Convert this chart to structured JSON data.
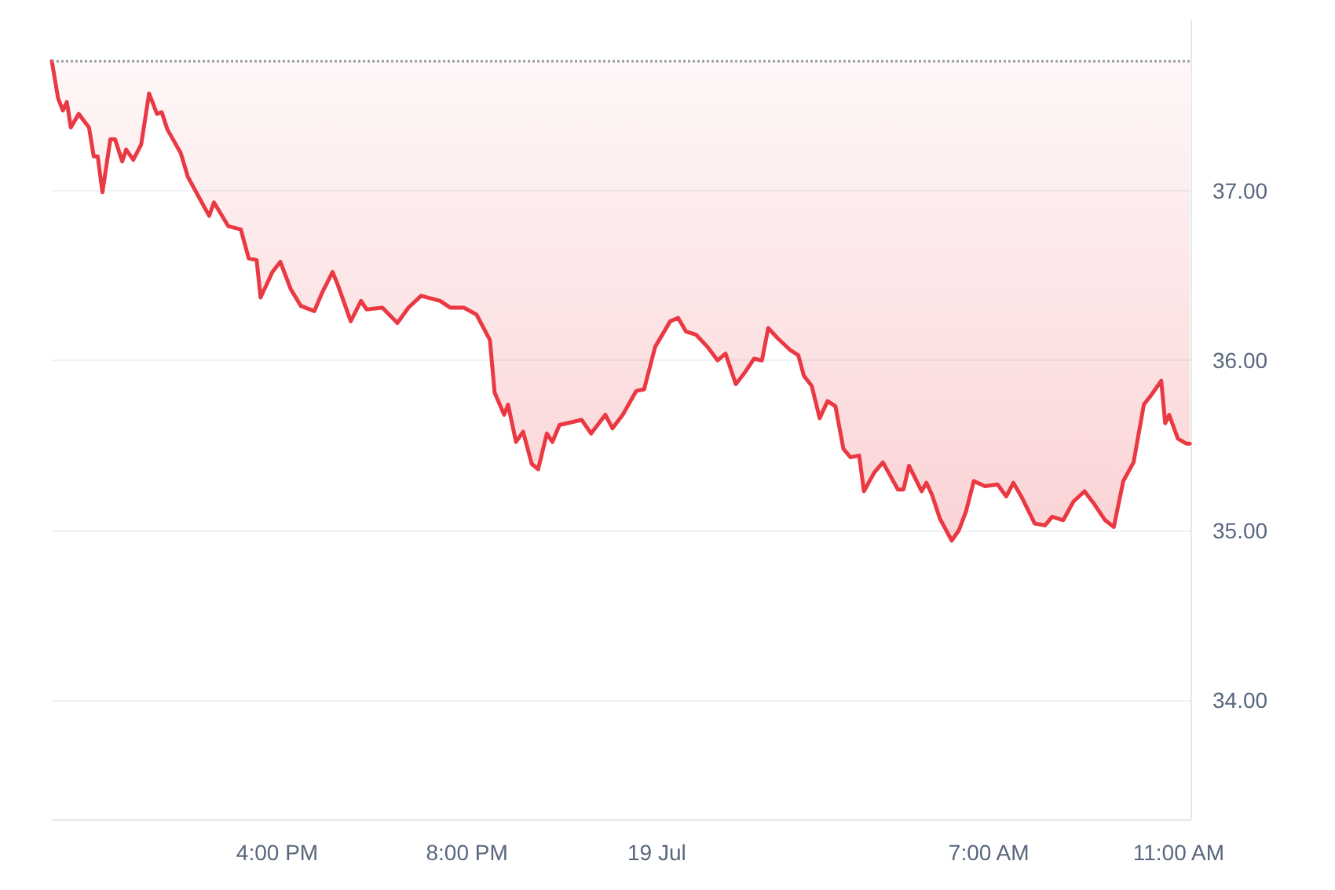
{
  "chart_data": {
    "type": "line",
    "color": "#ea3943",
    "line_style": "solid",
    "marker": "none",
    "grid": "y",
    "xlim": [
      "--07-18T11:15",
      "--07-19T11:15"
    ],
    "xticks": [
      {
        "value": "--07-18T16:00",
        "label": "4:00 PM"
      },
      {
        "value": "--07-18T20:00",
        "label": "8:00 PM"
      },
      {
        "value": "--07-19T00:00",
        "label": "19 Jul"
      },
      {
        "value": "--07-19T07:00",
        "label": "7:00 AM"
      },
      {
        "value": "--07-19T11:00",
        "label": "11:00 AM"
      }
    ],
    "ylim": [
      33.3,
      38.0
    ],
    "yticks": [
      {
        "value": 34,
        "label": "34.00"
      },
      {
        "value": 35,
        "label": "35.00"
      },
      {
        "value": 36,
        "label": "36.00"
      },
      {
        "value": 37,
        "label": "37.00"
      }
    ],
    "ref_lines": [
      {
        "axis": "y",
        "value": 37.76,
        "color": "#999999",
        "line_style": "dotted"
      }
    ],
    "x": [
      "--07-18T11:15",
      "--07-18T11:23",
      "--07-18T11:29",
      "--07-18T11:34",
      "--07-18T11:39",
      "--07-18T11:49",
      "--07-18T12:02",
      "--07-18T12:08",
      "--07-18T12:13",
      "--07-18T12:19",
      "--07-18T12:29",
      "--07-18T12:35",
      "--07-18T12:44",
      "--07-18T12:49",
      "--07-18T12:58",
      "--07-18T13:08",
      "--07-18T13:18",
      "--07-18T13:28",
      "--07-18T13:34",
      "--07-18T13:41",
      "--07-18T13:58",
      "--07-18T14:07",
      "--07-18T14:21",
      "--07-18T14:34",
      "--07-18T14:40",
      "--07-18T14:58",
      "--07-18T15:14",
      "--07-18T15:24",
      "--07-18T15:34",
      "--07-18T15:39",
      "--07-18T15:54",
      "--07-18T16:04",
      "--07-18T16:17",
      "--07-18T16:30",
      "--07-18T16:47",
      "--07-18T16:57",
      "--07-18T17:10",
      "--07-18T17:17",
      "--07-18T17:33",
      "--07-18T17:46",
      "--07-18T17:53",
      "--07-18T18:13",
      "--07-18T18:32",
      "--07-18T18:46",
      "--07-18T19:02",
      "--07-18T19:26",
      "--07-18T19:39",
      "--07-18T19:56",
      "--07-18T20:12",
      "--07-18T20:29",
      "--07-18T20:35",
      "--07-18T20:47",
      "--07-18T20:52",
      "--07-18T21:02",
      "--07-18T21:11",
      "--07-18T21:22",
      "--07-18T21:30",
      "--07-18T21:41",
      "--07-18T21:48",
      "--07-18T21:57",
      "--07-18T22:25",
      "--07-18T22:37",
      "--07-18T22:55",
      "--07-18T23:04",
      "--07-18T23:17",
      "--07-18T23:34",
      "--07-18T23:44",
      "--07-18T23:58",
      "--07-19T00:17",
      "--07-19T00:27",
      "--07-19T00:37",
      "--07-19T00:50",
      "--07-19T01:04",
      "--07-19T01:17",
      "--07-19T01:27",
      "--07-19T01:40",
      "--07-19T01:50",
      "--07-19T02:03",
      "--07-19T02:13",
      "--07-19T02:21",
      "--07-19T02:33",
      "--07-19T02:49",
      "--07-19T02:59",
      "--07-19T03:06",
      "--07-19T03:16",
      "--07-19T03:26",
      "--07-19T03:36",
      "--07-19T03:46",
      "--07-19T03:56",
      "--07-19T04:05",
      "--07-19T04:16",
      "--07-19T04:22",
      "--07-19T04:35",
      "--07-19T04:46",
      "--07-19T05:05",
      "--07-19T05:12",
      "--07-19T05:19",
      "--07-19T05:35",
      "--07-19T05:41",
      "--07-19T05:48",
      "--07-19T05:58",
      "--07-19T06:13",
      "--07-19T06:22",
      "--07-19T06:31",
      "--07-19T06:41",
      "--07-19T06:55",
      "--07-19T07:11",
      "--07-19T07:22",
      "--07-19T07:31",
      "--07-19T07:41",
      "--07-19T07:58",
      "--07-19T08:11",
      "--07-19T08:20",
      "--07-19T08:34",
      "--07-19T08:47",
      "--07-19T09:01",
      "--07-19T09:14",
      "--07-19T09:27",
      "--07-19T09:38",
      "--07-19T09:50",
      "--07-19T10:03",
      "--07-19T10:16",
      "--07-19T10:26",
      "--07-19T10:38",
      "--07-19T10:43",
      "--07-19T10:48",
      "--07-19T10:59",
      "--07-19T11:10",
      "--07-19T11:14"
    ],
    "values": [
      37.76,
      37.54,
      37.47,
      37.52,
      37.37,
      37.45,
      37.37,
      37.2,
      37.2,
      36.99,
      37.3,
      37.3,
      37.17,
      37.24,
      37.18,
      37.27,
      37.57,
      37.45,
      37.46,
      37.36,
      37.22,
      37.08,
      36.96,
      36.85,
      36.93,
      36.79,
      36.77,
      36.6,
      36.59,
      36.37,
      36.52,
      36.58,
      36.42,
      36.32,
      36.29,
      36.4,
      36.52,
      36.44,
      36.23,
      36.35,
      36.3,
      36.31,
      36.22,
      36.31,
      36.38,
      36.35,
      36.31,
      36.31,
      36.27,
      36.12,
      35.81,
      35.68,
      35.74,
      35.52,
      35.58,
      35.39,
      35.36,
      35.57,
      35.52,
      35.62,
      35.65,
      35.57,
      35.68,
      35.6,
      35.68,
      35.82,
      35.83,
      36.08,
      36.23,
      36.25,
      36.17,
      36.15,
      36.08,
      36.0,
      36.04,
      35.86,
      35.92,
      36.01,
      36.0,
      36.19,
      36.13,
      36.06,
      36.03,
      35.91,
      35.85,
      35.66,
      35.76,
      35.73,
      35.48,
      35.43,
      35.44,
      35.23,
      35.34,
      35.4,
      35.24,
      35.24,
      35.38,
      35.23,
      35.28,
      35.21,
      35.07,
      34.94,
      35.0,
      35.11,
      35.29,
      35.26,
      35.27,
      35.2,
      35.28,
      35.2,
      35.04,
      35.03,
      35.08,
      35.06,
      35.17,
      35.23,
      35.15,
      35.06,
      35.02,
      35.29,
      35.4,
      35.74,
      35.8,
      35.88,
      35.63,
      35.68,
      35.54,
      35.51,
      35.51
    ]
  }
}
